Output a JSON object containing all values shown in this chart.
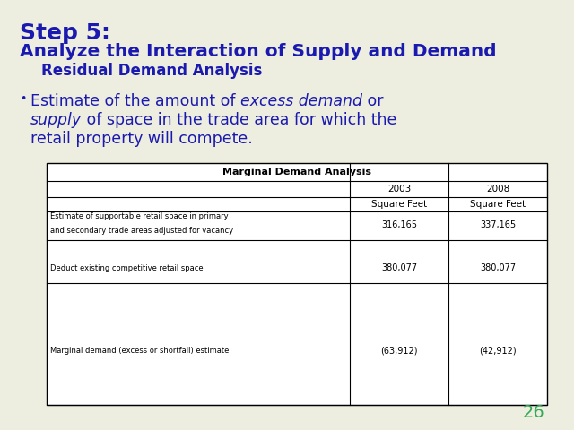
{
  "bg_color": "#eeeee0",
  "title_step": "Step 5:",
  "title_main": "Analyze the Interaction of Supply and Demand",
  "title_sub": "Residual Demand Analysis",
  "title_color": "#1a1ab0",
  "table_title": "Marginal Demand Analysis",
  "table_headers_year": [
    "2003",
    "2008"
  ],
  "table_headers_unit": [
    "Square Feet",
    "Square Feet"
  ],
  "table_rows": [
    {
      "label1": "Estimate of supportable retail space in primary",
      "label2": "and secondary trade areas adjusted for vacancy",
      "val1": "316,165",
      "val2": "337,165"
    },
    {
      "label1": "",
      "label2": "",
      "val1": "",
      "val2": ""
    },
    {
      "label1": "Deduct existing competitive retail space",
      "label2": "",
      "val1": "380,077",
      "val2": "380,077"
    },
    {
      "label1": "",
      "label2": "",
      "val1": "",
      "val2": ""
    },
    {
      "label1": "Marginal demand (excess or shortfall) estimate",
      "label2": "",
      "val1": "(63,912)",
      "val2": "(42,912)"
    }
  ],
  "page_number": "26",
  "page_num_color": "#33aa55",
  "bullet_line1_pre": "Estimate of the amount of ",
  "bullet_line1_italic": "excess demand",
  "bullet_line1_post": " or",
  "bullet_line2_italic": "supply",
  "bullet_line2_post": " of space in the trade area for which the",
  "bullet_line3": "retail property will compete."
}
